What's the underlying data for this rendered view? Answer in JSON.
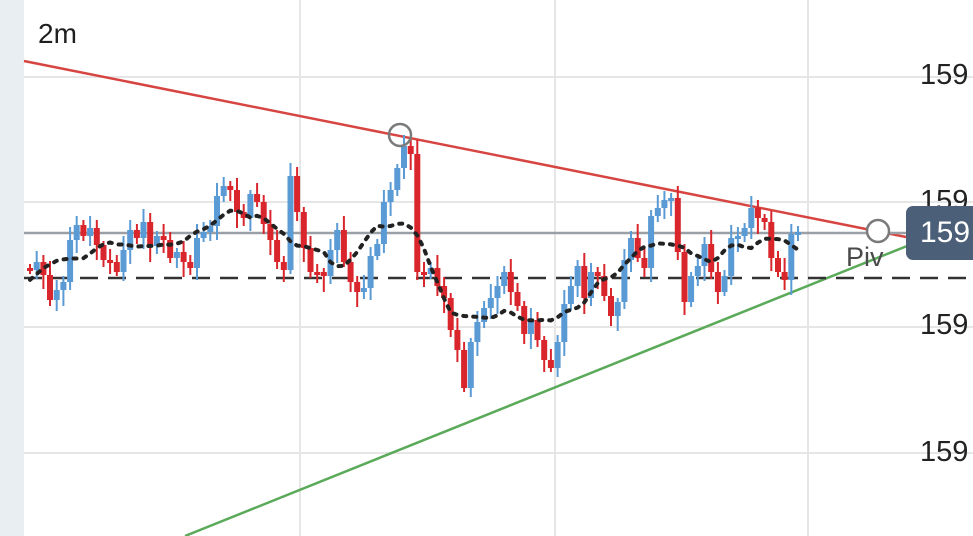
{
  "chart": {
    "timeframe": "2m",
    "pivot_label": "Piv",
    "current_price_label": "159",
    "y_axis_labels": [
      "159",
      "159",
      "159",
      "159"
    ]
  },
  "colors": {
    "bullish_candle": "#5b9bd5",
    "bearish_candle": "#d9262c",
    "resistance_line": "#d64541",
    "support_line": "#5aaa5a",
    "current_price_line": "#9aa0a6",
    "pivot_line": "#333333",
    "moving_average": "#222222",
    "badge_background": "#4c5f78",
    "grid": "#e6e6e6"
  }
}
